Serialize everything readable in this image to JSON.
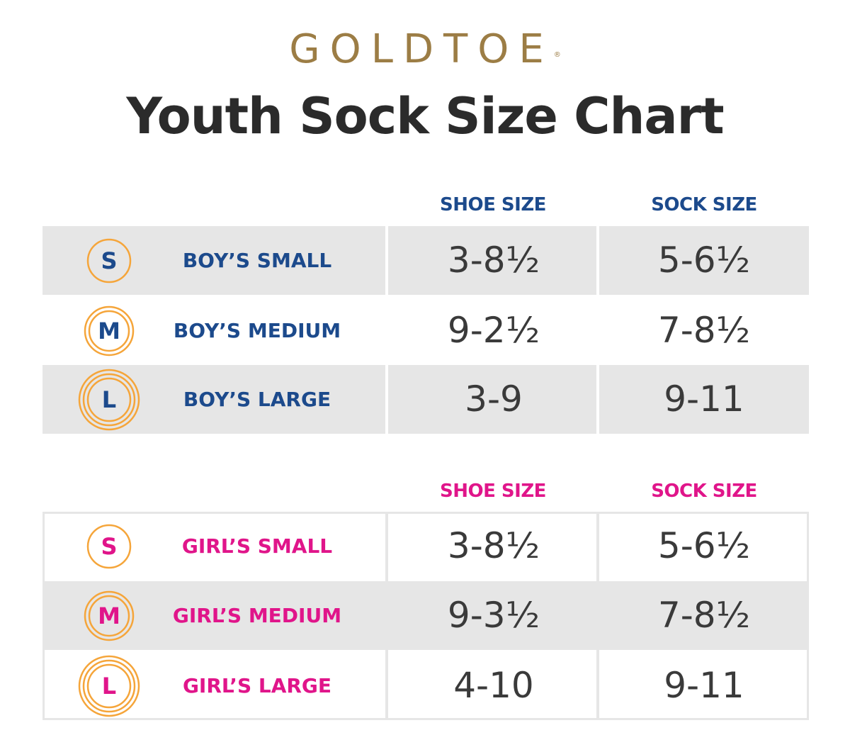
{
  "brand": {
    "name": "GOLDTOE",
    "mark": "®"
  },
  "title": "Youth Sock Size Chart",
  "colors": {
    "brand_gold": "#9c7d45",
    "boys_blue": "#1c4a8c",
    "girls_pink": "#e0158a",
    "badge_orange": "#f5a53a",
    "shade_gray": "#e6e6e6"
  },
  "boys": {
    "shoe_header": "SHOE SIZE",
    "sock_header": "SOCK SIZE",
    "rows": [
      {
        "badge": "S",
        "rings": 1,
        "label": "BOY’S SMALL",
        "shoe": "3-8½",
        "sock": "5-6½"
      },
      {
        "badge": "M",
        "rings": 2,
        "label": "BOY’S MEDIUM",
        "shoe": "9-2½",
        "sock": "7-8½"
      },
      {
        "badge": "L",
        "rings": 3,
        "label": "BOY’S LARGE",
        "shoe": "3-9",
        "sock": "9-11"
      }
    ]
  },
  "girls": {
    "shoe_header": "SHOE SIZE",
    "sock_header": "SOCK SIZE",
    "rows": [
      {
        "badge": "S",
        "rings": 1,
        "label": "GIRL’S SMALL",
        "shoe": "3-8½",
        "sock": "5-6½"
      },
      {
        "badge": "M",
        "rings": 2,
        "label": "GIRL’S MEDIUM",
        "shoe": "9-3½",
        "sock": "7-8½"
      },
      {
        "badge": "L",
        "rings": 3,
        "label": "GIRL’S LARGE",
        "shoe": "4-10",
        "sock": "9-11"
      }
    ]
  }
}
